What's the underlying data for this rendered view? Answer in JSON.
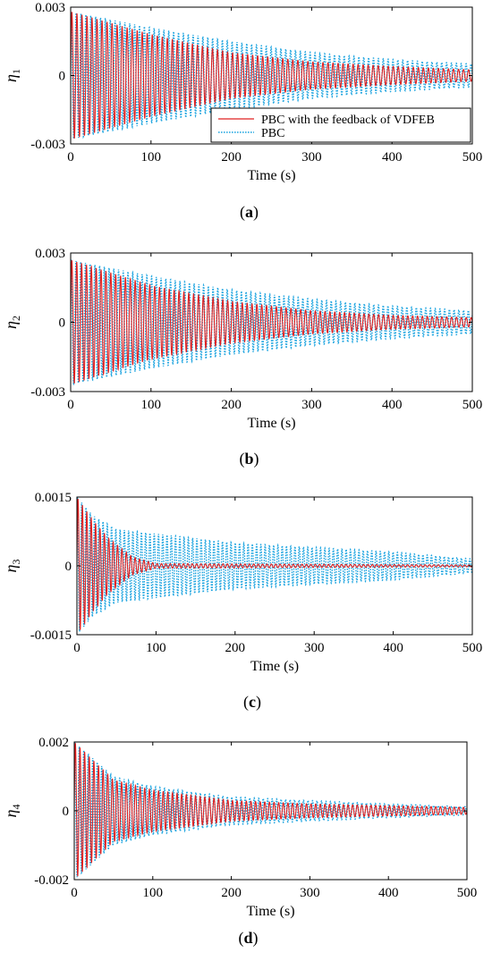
{
  "figure": {
    "panels": [
      {
        "id": "a",
        "caption_open": "(",
        "caption_letter": "a",
        "caption_close": ")",
        "chart_data": {
          "type": "line",
          "xlabel": "Time (s)",
          "ylabel_symbol": "η",
          "ylabel_sub": "1",
          "xlim": [
            0,
            500
          ],
          "ylim": [
            -0.003,
            0.003
          ],
          "xticks": [
            0,
            100,
            200,
            300,
            400,
            500
          ],
          "xtick_labels": [
            "0",
            "100",
            "200",
            "300",
            "400",
            "500"
          ],
          "yticks": [
            -0.003,
            0,
            0.003
          ],
          "ytick_labels": [
            "-0.003",
            "0",
            "0.003"
          ],
          "grid": false,
          "legend": {
            "placement": "lower-right",
            "entries": [
              "PBC with the feedback of VDFEB",
              "PBC"
            ]
          },
          "series": [
            {
              "name": "PBC with the feedback of VDFEB",
              "color": "#e02020",
              "style": "solid",
              "envelope": {
                "t": [
                  0,
                  100,
                  200,
                  300,
                  400,
                  500
                ],
                "amp": [
                  0.0028,
                  0.0018,
                  0.001,
                  0.0006,
                  0.0004,
                  0.00025
                ]
              }
            },
            {
              "name": "PBC",
              "color": "#1fa5e0",
              "style": "dotted",
              "envelope": {
                "t": [
                  0,
                  100,
                  200,
                  300,
                  400,
                  500
                ],
                "amp": [
                  0.0028,
                  0.0021,
                  0.0015,
                  0.001,
                  0.0007,
                  0.0005
                ]
              }
            }
          ]
        }
      },
      {
        "id": "b",
        "caption_open": "(",
        "caption_letter": "b",
        "caption_close": ")",
        "chart_data": {
          "type": "line",
          "xlabel": "Time (s)",
          "ylabel_symbol": "η",
          "ylabel_sub": "2",
          "xlim": [
            0,
            500
          ],
          "ylim": [
            -0.003,
            0.003
          ],
          "xticks": [
            0,
            100,
            200,
            300,
            400,
            500
          ],
          "xtick_labels": [
            "0",
            "100",
            "200",
            "300",
            "400",
            "500"
          ],
          "yticks": [
            -0.003,
            0,
            0.003
          ],
          "ytick_labels": [
            "-0.003",
            "0",
            "0.003"
          ],
          "grid": false,
          "series": [
            {
              "name": "PBC with the feedback of VDFEB",
              "color": "#e02020",
              "style": "solid",
              "envelope": {
                "t": [
                  0,
                  100,
                  200,
                  300,
                  400,
                  500
                ],
                "amp": [
                  0.0027,
                  0.0016,
                  0.0009,
                  0.0005,
                  0.0003,
                  0.0002
                ]
              }
            },
            {
              "name": "PBC",
              "color": "#1fa5e0",
              "style": "dotted",
              "envelope": {
                "t": [
                  0,
                  100,
                  200,
                  300,
                  400,
                  500
                ],
                "amp": [
                  0.0027,
                  0.002,
                  0.0014,
                  0.001,
                  0.0007,
                  0.0005
                ]
              }
            }
          ]
        }
      },
      {
        "id": "c",
        "caption_open": "(",
        "caption_letter": "c",
        "caption_close": ")",
        "chart_data": {
          "type": "line",
          "xlabel": "Time (s)",
          "ylabel_symbol": "η",
          "ylabel_sub": "3",
          "xlim": [
            0,
            500
          ],
          "ylim": [
            -0.0015,
            0.0015
          ],
          "xticks": [
            0,
            100,
            200,
            300,
            400,
            500
          ],
          "xtick_labels": [
            "0",
            "100",
            "200",
            "300",
            "400",
            "500"
          ],
          "yticks": [
            -0.0015,
            0,
            0.0015
          ],
          "ytick_labels": [
            "-0.0015",
            "0",
            "0.0015"
          ],
          "grid": false,
          "series": [
            {
              "name": "PBC with the feedback of VDFEB",
              "color": "#e02020",
              "style": "solid",
              "envelope": {
                "t": [
                  0,
                  20,
                  40,
                  70,
                  100,
                  500
                ],
                "amp": [
                  0.0015,
                  0.001,
                  0.0006,
                  0.0002,
                  5e-05,
                  2e-05
                ]
              }
            },
            {
              "name": "PBC",
              "color": "#1fa5e0",
              "style": "dotted",
              "envelope": {
                "t": [
                  0,
                  20,
                  50,
                  100,
                  200,
                  300,
                  400,
                  500
                ],
                "amp": [
                  0.0015,
                  0.0011,
                  0.0008,
                  0.0007,
                  0.0005,
                  0.0004,
                  0.0003,
                  0.00015
                ]
              }
            }
          ]
        }
      },
      {
        "id": "d",
        "caption_open": "(",
        "caption_letter": "d",
        "caption_close": ")",
        "chart_data": {
          "type": "line",
          "xlabel": "Time (s)",
          "ylabel_symbol": "η",
          "ylabel_sub": "4",
          "xlim": [
            0,
            500
          ],
          "ylim": [
            -0.002,
            0.002
          ],
          "xticks": [
            0,
            100,
            200,
            300,
            400,
            500
          ],
          "xtick_labels": [
            "0",
            "100",
            "200",
            "300",
            "400",
            "500"
          ],
          "yticks": [
            -0.002,
            0,
            0.002
          ],
          "ytick_labels": [
            "-0.002",
            "0",
            "0.002"
          ],
          "grid": false,
          "series": [
            {
              "name": "PBC with the feedback of VDFEB",
              "color": "#e02020",
              "style": "solid",
              "envelope": {
                "t": [
                  0,
                  50,
                  100,
                  200,
                  300,
                  400,
                  500
                ],
                "amp": [
                  0.002,
                  0.0009,
                  0.0006,
                  0.0003,
                  0.0002,
                  0.00015,
                  0.0001
                ]
              }
            },
            {
              "name": "PBC",
              "color": "#1fa5e0",
              "style": "dotted",
              "envelope": {
                "t": [
                  0,
                  50,
                  100,
                  200,
                  300,
                  400,
                  500
                ],
                "amp": [
                  0.002,
                  0.001,
                  0.0007,
                  0.0004,
                  0.0003,
                  0.0002,
                  0.00012
                ]
              }
            }
          ]
        }
      }
    ]
  }
}
